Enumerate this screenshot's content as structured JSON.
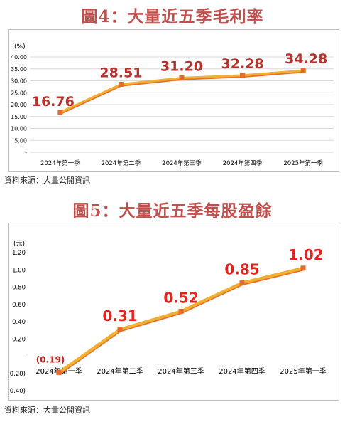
{
  "figures": [
    {
      "title": "圖4：大量近五季毛利率",
      "source": "資料來源：大量公開資訊"
    },
    {
      "title": "圖5：大量近五季每股盈餘",
      "source": "資料來源：大量公開資訊"
    }
  ],
  "colors": {
    "title": "#c0504d",
    "line": "#f0b030",
    "line_shadow": "#e8702a",
    "marker": "#e46c2c",
    "label_chart1": "#b7322c",
    "label_chart2": "#e0231c",
    "label_negative": "#c0231c"
  },
  "chart_data": [
    {
      "type": "line",
      "title": "圖4：大量近五季毛利率",
      "unit": "(%)",
      "categories": [
        "2024年第一季",
        "2024年第二季",
        "2024年第三季",
        "2024年第四季",
        "2025年第一季"
      ],
      "series": [
        {
          "values": [
            16.76,
            28.51,
            31.2,
            32.28,
            34.28
          ]
        }
      ],
      "data_labels": [
        "16.76",
        "28.51",
        "31.20",
        "32.28",
        "34.28"
      ],
      "yticks": [
        0,
        5,
        10,
        15,
        20,
        25,
        30,
        35,
        40
      ],
      "ytick_labels": [
        "-",
        "5.00",
        "10.00",
        "15.00",
        "20.00",
        "25.00",
        "30.00",
        "35.00",
        "40.00"
      ],
      "ylim": [
        0,
        40
      ],
      "grid": true,
      "legend": "none"
    },
    {
      "type": "line",
      "title": "圖5：大量近五季每股盈餘",
      "unit": "(元)",
      "categories": [
        "2024年第一季",
        "2024年第二季",
        "2024年第三季",
        "2024年第四季",
        "2025年第一季"
      ],
      "series": [
        {
          "values": [
            -0.19,
            0.31,
            0.52,
            0.85,
            1.02
          ]
        }
      ],
      "data_labels": [
        "(0.19)",
        "0.31",
        "0.52",
        "0.85",
        "1.02"
      ],
      "yticks": [
        -0.4,
        -0.2,
        0,
        0.2,
        0.4,
        0.6,
        0.8,
        1.0,
        1.2
      ],
      "ytick_labels": [
        "(0.40)",
        "(0.20)",
        "-",
        "0.20",
        "0.40",
        "0.60",
        "0.80",
        "1.00",
        "1.20"
      ],
      "ylim": [
        -0.4,
        1.2
      ],
      "grid": false,
      "legend": "none"
    }
  ]
}
